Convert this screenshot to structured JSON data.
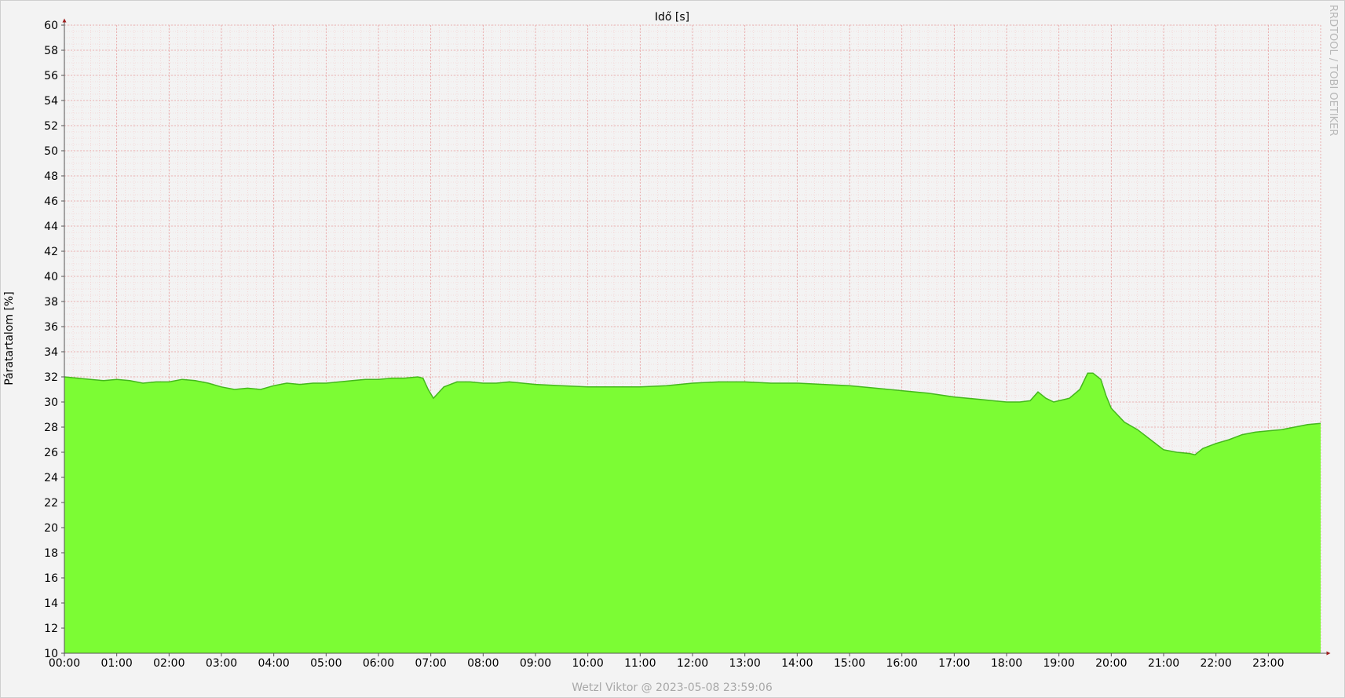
{
  "chart_data": {
    "type": "area",
    "title": "",
    "xlabel": "Idő [s]",
    "ylabel": "Páratartalom [%]",
    "watermark": "RRDTOOL / TOBI OETIKER",
    "footer": "Wetzl Viktor @ 2023-05-08 23:59:06",
    "ylim": [
      10,
      60
    ],
    "xlim": [
      0,
      24
    ],
    "y_ticks": [
      10,
      12,
      14,
      16,
      18,
      20,
      22,
      24,
      26,
      28,
      30,
      32,
      34,
      36,
      38,
      40,
      42,
      44,
      46,
      48,
      50,
      52,
      54,
      56,
      58,
      60
    ],
    "x_tick_labels": [
      "00:00",
      "01:00",
      "02:00",
      "03:00",
      "04:00",
      "05:00",
      "06:00",
      "07:00",
      "08:00",
      "09:00",
      "10:00",
      "11:00",
      "12:00",
      "13:00",
      "14:00",
      "15:00",
      "16:00",
      "17:00",
      "18:00",
      "19:00",
      "20:00",
      "21:00",
      "22:00",
      "23:00"
    ],
    "grid": true,
    "fill_color": "#7cfc34",
    "line_color": "#44b81c",
    "series": [
      {
        "x": [
          0,
          0.25,
          0.5,
          0.75,
          1,
          1.25,
          1.5,
          1.75,
          2,
          2.25,
          2.5,
          2.75,
          3,
          3.25,
          3.5,
          3.75,
          4,
          4.25,
          4.5,
          4.75,
          5,
          5.25,
          5.5,
          5.75,
          6,
          6.25,
          6.5,
          6.75,
          6.85,
          6.95,
          7.05,
          7.25,
          7.5,
          7.75,
          8,
          8.25,
          8.5,
          8.75,
          9,
          9.5,
          10,
          10.5,
          11,
          11.5,
          12,
          12.5,
          13,
          13.5,
          14,
          14.5,
          15,
          15.5,
          16,
          16.5,
          17,
          17.5,
          18,
          18.25,
          18.45,
          18.6,
          18.75,
          18.9,
          19,
          19.2,
          19.4,
          19.55,
          19.65,
          19.8,
          19.9,
          20,
          20.25,
          20.5,
          20.75,
          21,
          21.25,
          21.5,
          21.6,
          21.75,
          22,
          22.25,
          22.5,
          22.75,
          23,
          23.25,
          23.5,
          23.75,
          24
        ],
        "y": [
          32,
          31.9,
          31.8,
          31.7,
          31.8,
          31.7,
          31.5,
          31.6,
          31.6,
          31.8,
          31.7,
          31.5,
          31.2,
          31,
          31.1,
          31,
          31.3,
          31.5,
          31.4,
          31.5,
          31.5,
          31.6,
          31.7,
          31.8,
          31.8,
          31.9,
          31.9,
          32,
          31.9,
          31,
          30.3,
          31.2,
          31.6,
          31.6,
          31.5,
          31.5,
          31.6,
          31.5,
          31.4,
          31.3,
          31.2,
          31.2,
          31.2,
          31.3,
          31.5,
          31.6,
          31.6,
          31.5,
          31.5,
          31.4,
          31.3,
          31.1,
          30.9,
          30.7,
          30.4,
          30.2,
          30,
          30,
          30.1,
          30.8,
          30.3,
          30,
          30.1,
          30.3,
          31,
          32.3,
          32.3,
          31.8,
          30.5,
          29.5,
          28.4,
          27.8,
          27,
          26.2,
          26,
          25.9,
          25.8,
          26.3,
          26.7,
          27,
          27.4,
          27.6,
          27.7,
          27.8,
          28,
          28.2,
          28.3
        ]
      }
    ]
  }
}
